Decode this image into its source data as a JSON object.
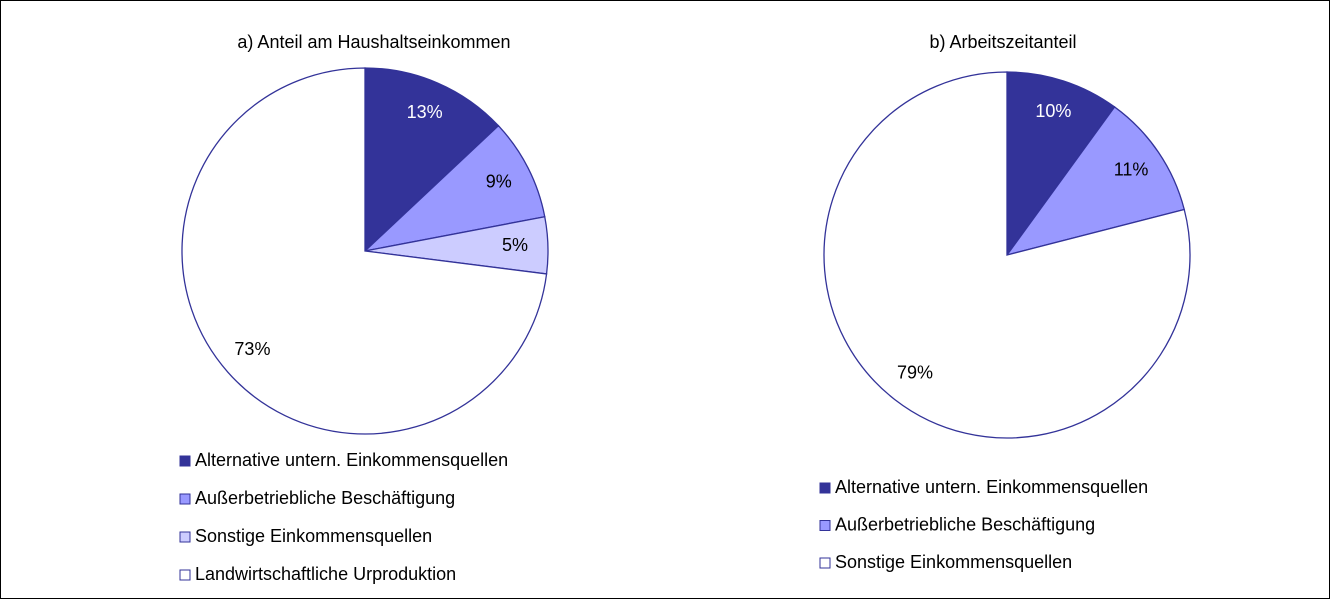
{
  "chart_data": [
    {
      "type": "pie",
      "title": "a) Anteil am Haushaltseinkommen",
      "categories": [
        "Alternative untern. Einkommensquellen",
        "Außerbetriebliche Beschäftigung",
        "Sonstige Einkommensquellen",
        "Landwirtschaftliche Urproduktion"
      ],
      "values": [
        13,
        9,
        5,
        73
      ],
      "value_labels": [
        "13%",
        "9%",
        "5%",
        "73%"
      ],
      "colors": [
        "#333399",
        "#9999ff",
        "#ccccff",
        "#ffffff"
      ]
    },
    {
      "type": "pie",
      "title": "b) Arbeitszeitanteil",
      "categories": [
        "Alternative untern. Einkommensquellen",
        "Außerbetriebliche Beschäftigung",
        "Sonstige Einkommensquellen"
      ],
      "values": [
        10,
        11,
        79
      ],
      "value_labels": [
        "10%",
        "11%",
        "79%"
      ],
      "colors": [
        "#333399",
        "#9999ff",
        "#ffffff"
      ]
    }
  ]
}
